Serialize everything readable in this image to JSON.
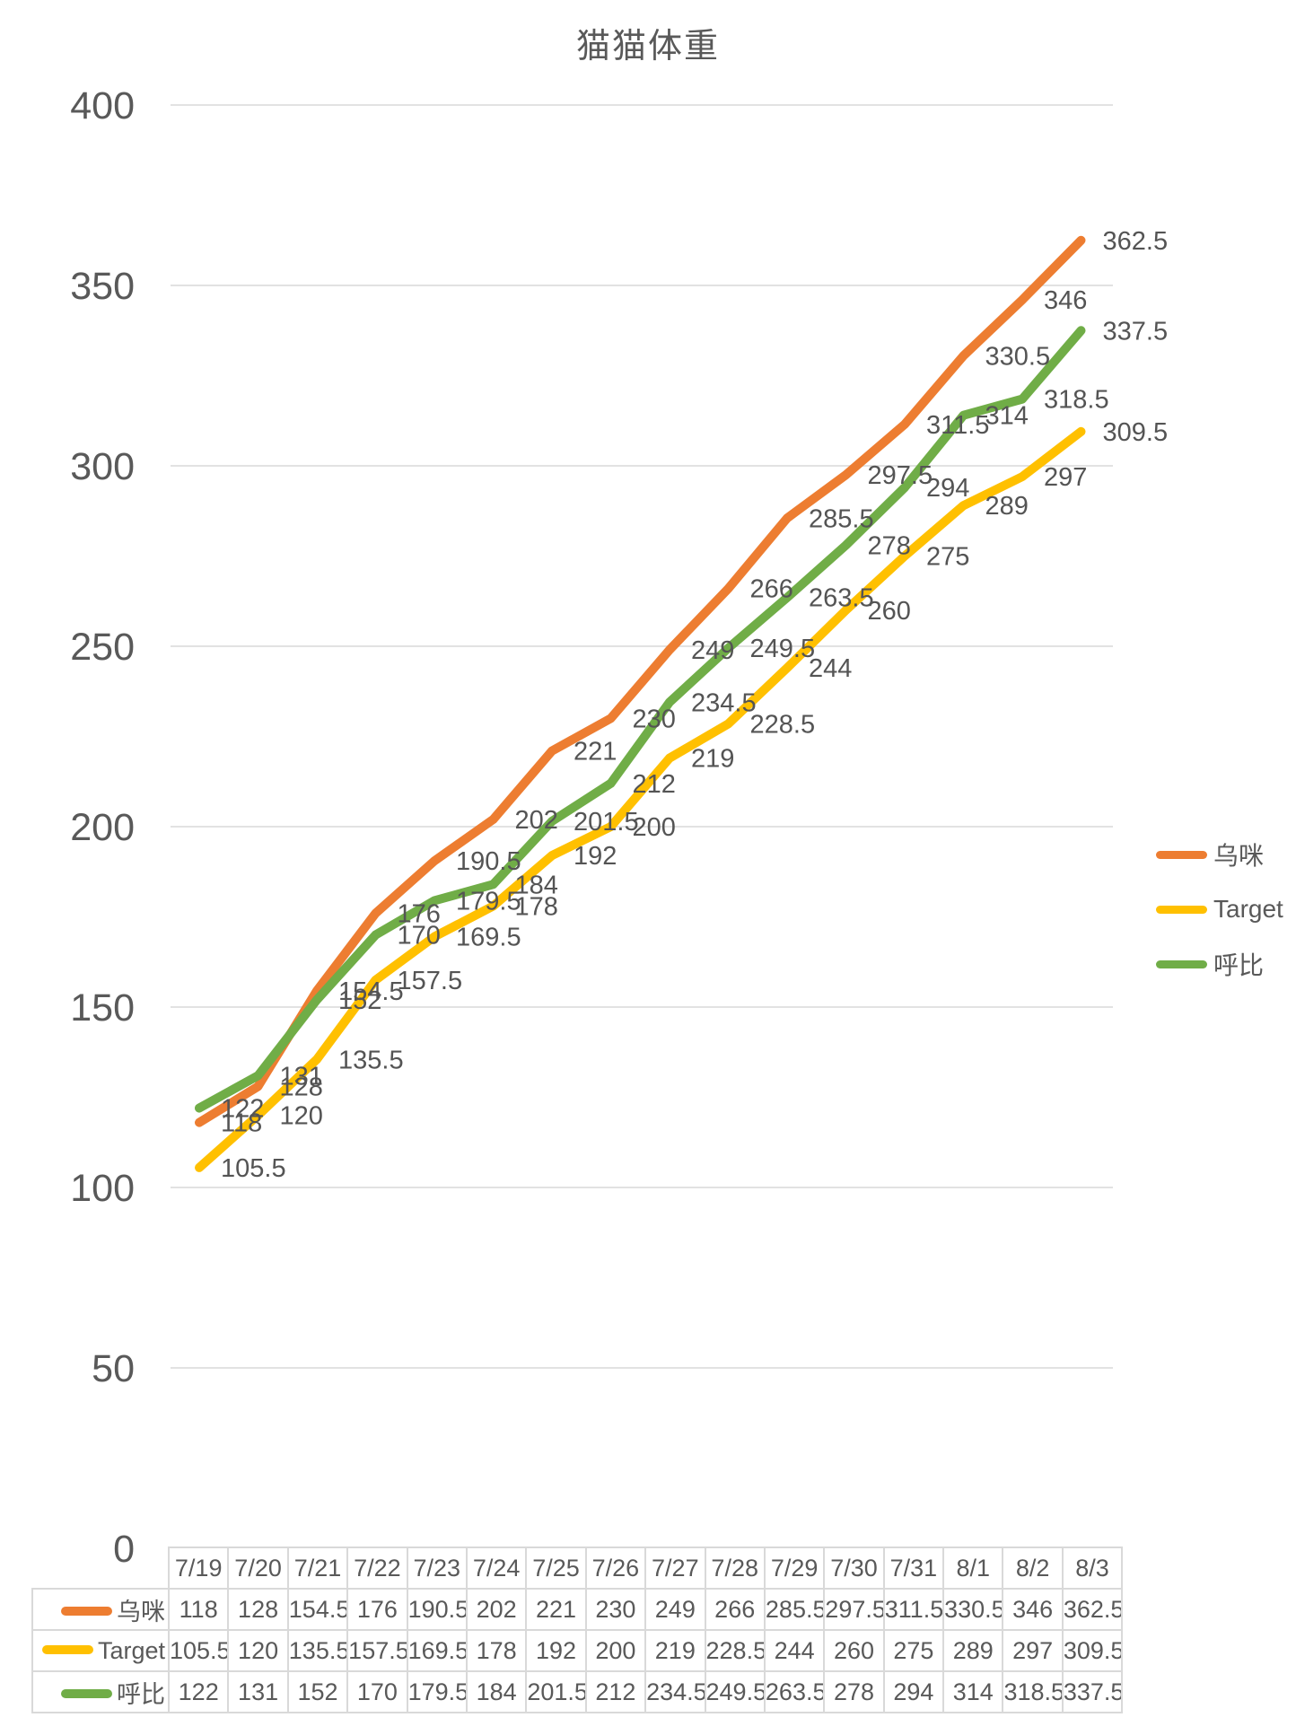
{
  "title": "猫猫体重",
  "chart_data": {
    "type": "line",
    "title": "猫猫体重",
    "categories": [
      "7/19",
      "7/20",
      "7/21",
      "7/22",
      "7/23",
      "7/24",
      "7/25",
      "7/26",
      "7/27",
      "7/28",
      "7/29",
      "7/30",
      "7/31",
      "8/1",
      "8/2",
      "8/3"
    ],
    "series": [
      {
        "name": "乌咪",
        "color": "#ED7D31",
        "values": [
          118,
          128,
          154.5,
          176,
          190.5,
          202,
          221,
          230,
          249,
          266,
          285.5,
          297.5,
          311.5,
          330.5,
          346,
          362.5
        ]
      },
      {
        "name": "Target",
        "color": "#FFC000",
        "values": [
          105.5,
          120,
          135.5,
          157.5,
          169.5,
          178,
          192,
          200,
          219,
          228.5,
          244,
          260,
          275,
          289,
          297,
          309.5
        ]
      },
      {
        "name": "呼比",
        "color": "#70AD47",
        "values": [
          122,
          131,
          152,
          170,
          179.5,
          184,
          201.5,
          212,
          234.5,
          249.5,
          263.5,
          278,
          294,
          314,
          318.5,
          337.5
        ]
      }
    ],
    "xlabel": "",
    "ylabel": "",
    "ylim": [
      0,
      400
    ],
    "y_ticks": [
      400,
      350,
      300,
      250,
      200,
      150,
      100,
      50,
      0
    ],
    "grid": true,
    "legend_position": "right",
    "data_labels": true
  },
  "legend": {
    "items": [
      {
        "label": "乌咪"
      },
      {
        "label": "Target"
      },
      {
        "label": "呼比"
      }
    ]
  },
  "colors": {
    "grid": "#E2E2E2",
    "axis_text": "#595959",
    "label_text": "#545454",
    "table_border": "#D9D9D9",
    "title_text": "#595959"
  }
}
